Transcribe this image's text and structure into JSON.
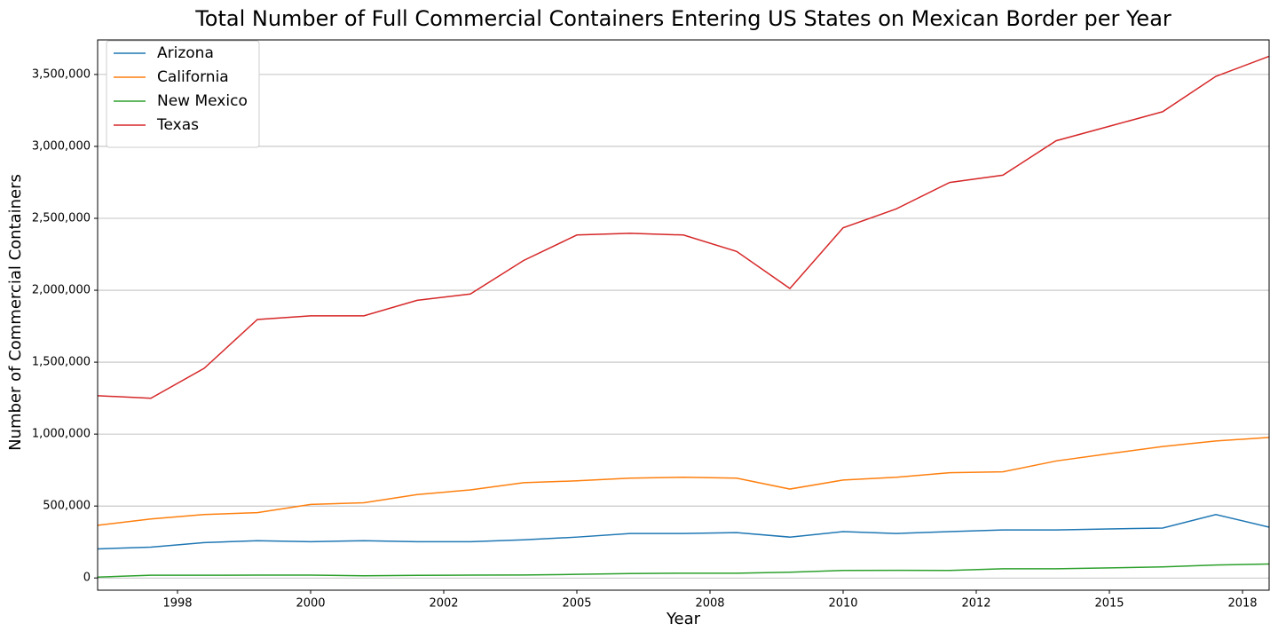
{
  "chart_data": {
    "type": "line",
    "title": "Total Number of Full Commercial Containers Entering US States on Mexican Border per Year",
    "xlabel": "Year",
    "ylabel": "Number of Commercial Containers",
    "x": [
      1996,
      1997,
      1998,
      1999,
      2000,
      2001,
      2002,
      2003,
      2004,
      2005,
      2006,
      2007,
      2008,
      2009,
      2010,
      2011,
      2012,
      2013,
      2014,
      2015,
      2016,
      2017,
      2018
    ],
    "series": [
      {
        "name": "Arizona",
        "color": "#1f77b4",
        "values": [
          202000,
          214000,
          246000,
          259000,
          252000,
          259000,
          252000,
          252000,
          265000,
          284000,
          309000,
          309000,
          315000,
          284000,
          322000,
          309000,
          322000,
          334000,
          334000,
          341000,
          347000,
          441000,
          353000
        ]
      },
      {
        "name": "California",
        "color": "#ff7f0e",
        "values": [
          366000,
          410000,
          441000,
          454000,
          511000,
          523000,
          580000,
          612000,
          662000,
          675000,
          694000,
          700000,
          694000,
          618000,
          681000,
          700000,
          732000,
          738000,
          813000,
          864000,
          914000,
          952000,
          977000
        ]
      },
      {
        "name": "New Mexico",
        "color": "#2ca02c",
        "values": [
          6000,
          19000,
          19000,
          20000,
          20000,
          15000,
          18000,
          20000,
          21000,
          25000,
          31000,
          33000,
          33000,
          40000,
          52000,
          53000,
          52000,
          64000,
          64000,
          70000,
          77000,
          90000,
          97000
        ]
      },
      {
        "name": "Texas",
        "color": "#d62728",
        "values": [
          1267000,
          1249000,
          1457000,
          1797000,
          1822000,
          1822000,
          1930000,
          1974000,
          2207000,
          2384000,
          2396000,
          2384000,
          2270000,
          2012000,
          2434000,
          2566000,
          2749000,
          2800000,
          3039000,
          3140000,
          3241000,
          3487000,
          3626000
        ]
      }
    ],
    "xlim": [
      1996,
      2018
    ],
    "xticks": [
      {
        "value": 1997.5,
        "label": "1998"
      },
      2000,
      {
        "value": 2002.5,
        "label": "2002"
      },
      2005,
      {
        "value": 2007.5,
        "label": "2008"
      },
      2010,
      {
        "value": 2012.5,
        "label": "2012"
      },
      2015,
      {
        "value": 2017.5,
        "label": "2018"
      }
    ],
    "ylim": [
      -85000,
      3740000
    ],
    "yticks": [
      0,
      {
        "value": 500000,
        "label": "500,000"
      },
      {
        "value": 1000000,
        "label": "1,000,000"
      },
      {
        "value": 1500000,
        "label": "1,500,000"
      },
      {
        "value": 2000000,
        "label": "2,000,000"
      },
      {
        "value": 2500000,
        "label": "2,500,000"
      },
      {
        "value": 3000000,
        "label": "3,000,000"
      },
      {
        "value": 3500000,
        "label": "3,500,000"
      }
    ],
    "grid": true,
    "legend": "upper left"
  }
}
